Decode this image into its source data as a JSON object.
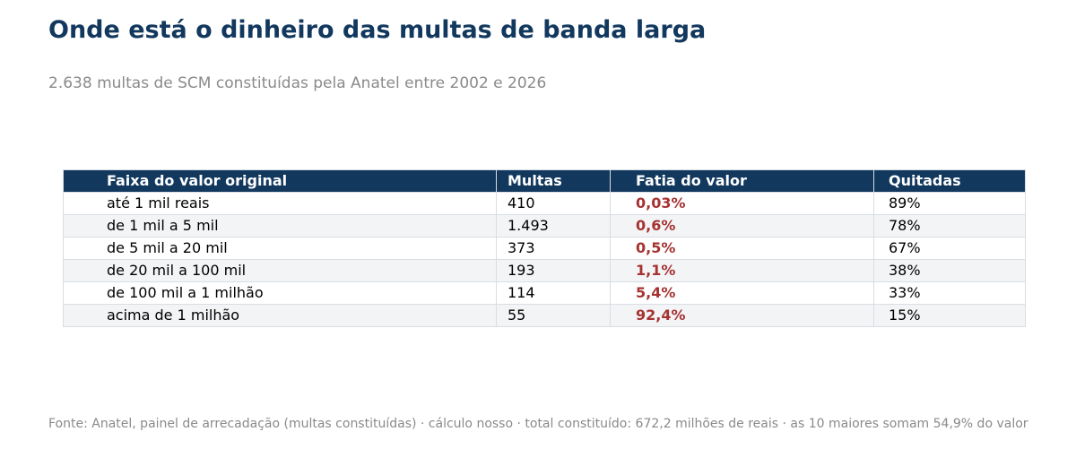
{
  "title": "Onde está o dinheiro das multas de banda larga",
  "subtitle": "2.638 multas de SCM constituídas pela Anatel entre 2002 e 2026",
  "source": "Fonte: Anatel, painel de arrecadação (multas constituídas) · cálculo nosso · total constituído: 672,2 milhões de reais · as 10 maiores somam 54,9% do valor",
  "colors": {
    "header_bg": "#12385e",
    "title": "#12385e",
    "share_text": "#a63232",
    "muted_text": "#8a8a8a",
    "alt_row_bg": "#f3f4f6"
  },
  "chart_data": {
    "type": "table",
    "columns": [
      "Faixa do valor original",
      "Multas",
      "Fatia do valor",
      "Quitadas"
    ],
    "rows": [
      [
        "até 1 mil reais",
        "410",
        "0,03%",
        "89%"
      ],
      [
        "de 1 mil a 5 mil",
        "1.493",
        "0,6%",
        "78%"
      ],
      [
        "de 5 mil a 20 mil",
        "373",
        "0,5%",
        "67%"
      ],
      [
        "de 20 mil a 100 mil",
        "193",
        "1,1%",
        "38%"
      ],
      [
        "de 100 mil a 1 milhão",
        "114",
        "5,4%",
        "33%"
      ],
      [
        "acima de 1 milhão",
        "55",
        "92,4%",
        "15%"
      ]
    ]
  }
}
